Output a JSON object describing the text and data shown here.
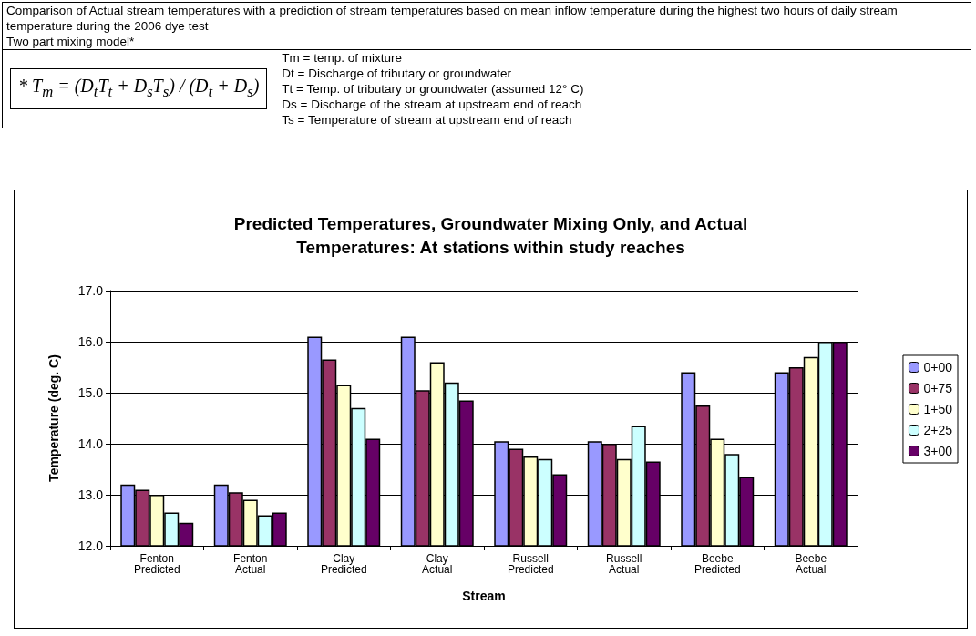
{
  "chart_data": {
    "type": "bar",
    "title": "Predicted Temperatures, Groundwater Mixing Only, and Actual\nTemperatures: At stations within study reaches",
    "xlabel": "Stream",
    "ylabel": "Temperature (deg. C)",
    "annotations": [
      "Comparison of Actual stream temperatures with a prediction of stream temperatures based on mean inflow temperature during the highest two hours of daily stream temperature during the 2006 dye test",
      "Two part mixing model*",
      "* T$_{m}$ = (D$_{t}$T$_{t}$ + D$_{s}$T$_{s}$) / (D$_{t}$ + D$_{s}$)",
      "Tm = temp. of mixture",
      "Dt = Discharge of tributary or groundwater",
      "Tt = Temp. of tributary or groundwater (assumed 12° C)",
      "Ds = Discharge of the stream at upstream end of reach",
      "Ts = Temperature of stream at upstream end of reach"
    ],
    "categories": [
      "Fenton Predicted",
      "Fenton Actual",
      "Clay Predicted",
      "Clay Actual",
      "Russell Predicted",
      "Russell Actual",
      "Beebe Predicted",
      "Beebe Actual"
    ],
    "series": [
      {
        "name": "0+00",
        "color": "#9999ff",
        "values": [
          13.2,
          13.2,
          16.1,
          16.1,
          14.05,
          14.05,
          15.4,
          15.4
        ]
      },
      {
        "name": "0+75",
        "color": "#993366",
        "values": [
          13.1,
          13.05,
          15.65,
          15.05,
          13.9,
          14.0,
          14.75,
          15.5
        ]
      },
      {
        "name": "1+50",
        "color": "#ffffcc",
        "values": [
          13.0,
          12.9,
          15.15,
          15.6,
          13.75,
          13.7,
          14.1,
          15.7
        ]
      },
      {
        "name": "2+25",
        "color": "#ccffff",
        "values": [
          12.65,
          12.6,
          14.7,
          15.2,
          13.7,
          14.35,
          13.8,
          16.0
        ]
      },
      {
        "name": "3+00",
        "color": "#660066",
        "values": [
          12.45,
          12.65,
          14.1,
          14.85,
          13.4,
          13.65,
          13.35,
          16.0
        ]
      }
    ],
    "ylim": [
      12,
      17
    ],
    "yticks": [
      {
        "value": 12,
        "label": "12.0"
      },
      {
        "value": 13,
        "label": "13.0"
      },
      {
        "value": 14,
        "label": "14.0"
      },
      {
        "value": 15,
        "label": "15.0"
      },
      {
        "value": 16,
        "label": "16.0"
      },
      {
        "value": 17,
        "label": "17.0"
      }
    ],
    "grid": "y",
    "legend": "right"
  }
}
